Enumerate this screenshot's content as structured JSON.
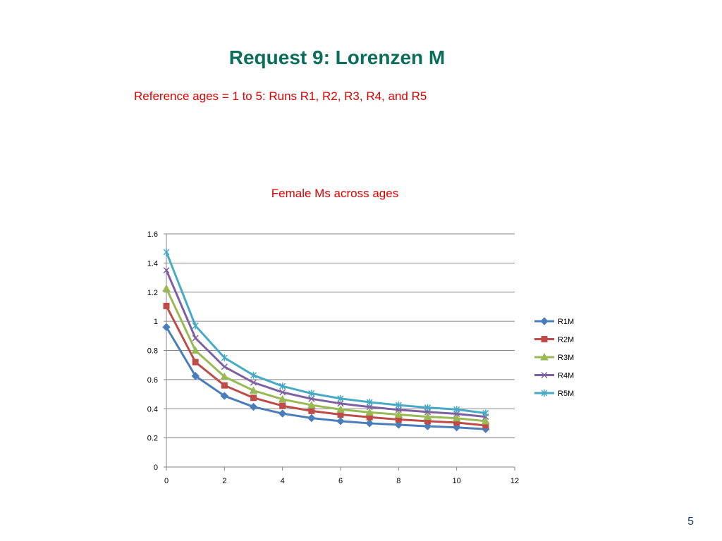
{
  "slide": {
    "title": "Request 9: Lorenzen M",
    "subtitle": "Reference ages = 1 to 5: Runs R1, R2, R3, R4, and R5",
    "page_number": "5"
  },
  "colors": {
    "title": "#0b6e5a",
    "subtitle": "#e00000",
    "grid": "#868686",
    "axis": "#868686"
  },
  "chart_data": {
    "type": "line",
    "title": "Female Ms across ages",
    "xlabel": "",
    "ylabel": "",
    "xlim": [
      0,
      12
    ],
    "ylim": [
      0,
      1.6
    ],
    "x_ticks": [
      0,
      2,
      4,
      6,
      8,
      10,
      12
    ],
    "y_ticks": [
      0,
      0.2,
      0.4,
      0.6,
      0.8,
      1,
      1.2,
      1.4,
      1.6
    ],
    "grid": "horizontal",
    "legend_position": "right",
    "x": [
      0,
      1,
      2,
      3,
      4,
      5,
      6,
      7,
      8,
      9,
      10,
      11
    ],
    "series": [
      {
        "name": "R1M",
        "color": "#4a7ebb",
        "marker": "diamond",
        "values": [
          0.96,
          0.625,
          0.488,
          0.413,
          0.367,
          0.336,
          0.315,
          0.3,
          0.29,
          0.28,
          0.272,
          0.26
        ]
      },
      {
        "name": "R2M",
        "color": "#be4b48",
        "marker": "square",
        "values": [
          1.105,
          0.72,
          0.56,
          0.475,
          0.42,
          0.385,
          0.36,
          0.342,
          0.326,
          0.315,
          0.305,
          0.285
        ]
      },
      {
        "name": "R3M",
        "color": "#98b954",
        "marker": "triangle",
        "values": [
          1.225,
          0.8,
          0.62,
          0.525,
          0.465,
          0.425,
          0.395,
          0.375,
          0.36,
          0.345,
          0.335,
          0.315
        ]
      },
      {
        "name": "R4M",
        "color": "#7d60a0",
        "marker": "x",
        "values": [
          1.35,
          0.885,
          0.688,
          0.58,
          0.513,
          0.468,
          0.436,
          0.412,
          0.393,
          0.378,
          0.365,
          0.345
        ]
      },
      {
        "name": "R5M",
        "color": "#46aac5",
        "marker": "star",
        "values": [
          1.475,
          0.97,
          0.75,
          0.63,
          0.555,
          0.505,
          0.47,
          0.445,
          0.425,
          0.408,
          0.395,
          0.37
        ]
      }
    ]
  }
}
